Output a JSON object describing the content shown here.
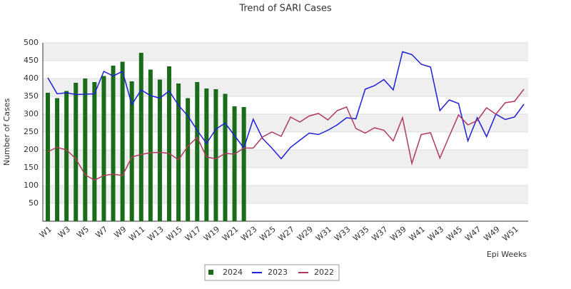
{
  "chart_data": {
    "type": "bar-line",
    "title": "Trend of SARI Cases",
    "x_label": "Epi Weeks",
    "y_label": "Number of Cases",
    "categories": [
      "W1",
      null,
      "W3",
      null,
      "W5",
      null,
      "W7",
      null,
      "W9",
      null,
      "W11",
      null,
      "W13",
      null,
      "W15",
      null,
      "W17",
      null,
      "W19",
      null,
      "W21",
      null,
      "W23",
      null,
      "W25",
      null,
      "W27",
      null,
      "W29",
      null,
      "W31",
      null,
      "W33",
      null,
      "W35",
      null,
      "W37",
      null,
      "W39",
      null,
      "W41",
      null,
      "W43",
      null,
      "W45",
      null,
      "W47",
      null,
      "W49",
      null,
      "W51",
      null
    ],
    "series": [
      {
        "name": "2024",
        "type": "bar",
        "color": "#1a6b1a",
        "values": [
          360,
          345,
          365,
          388,
          400,
          390,
          407,
          436,
          447,
          392,
          472,
          425,
          397,
          434,
          386,
          345,
          390,
          372,
          370,
          357,
          322,
          320,
          null,
          null,
          null,
          null,
          null,
          null,
          null,
          null,
          null,
          null,
          null,
          null,
          null,
          null,
          null,
          null,
          null,
          null,
          null,
          null,
          null,
          null,
          null,
          null,
          null,
          null,
          null,
          null,
          null,
          null
        ]
      },
      {
        "name": "2023",
        "type": "line",
        "color": "#1f1fd6",
        "values": [
          402,
          357,
          360,
          355,
          356,
          357,
          420,
          407,
          420,
          327,
          368,
          352,
          345,
          365,
          325,
          295,
          255,
          218,
          258,
          275,
          240,
          205,
          286,
          232,
          205,
          175,
          207,
          227,
          247,
          243,
          255,
          270,
          290,
          287,
          370,
          380,
          397,
          368,
          475,
          467,
          440,
          432,
          310,
          340,
          330,
          225,
          290,
          237,
          300,
          285,
          292,
          328
        ]
      },
      {
        "name": "2022",
        "type": "line",
        "color": "#b03a5b",
        "values": [
          195,
          207,
          200,
          175,
          130,
          115,
          128,
          132,
          128,
          180,
          187,
          192,
          193,
          190,
          172,
          210,
          235,
          180,
          175,
          190,
          188,
          205,
          205,
          236,
          250,
          238,
          292,
          278,
          295,
          302,
          284,
          310,
          320,
          260,
          247,
          262,
          255,
          225,
          290,
          162,
          243,
          248,
          177,
          238,
          298,
          270,
          282,
          318,
          300,
          332,
          336,
          370
        ]
      }
    ],
    "ylim": [
      0,
      500
    ],
    "yticks": [
      50,
      100,
      150,
      200,
      250,
      300,
      350,
      400,
      450,
      500
    ],
    "grid": true,
    "legend": "bottom"
  }
}
